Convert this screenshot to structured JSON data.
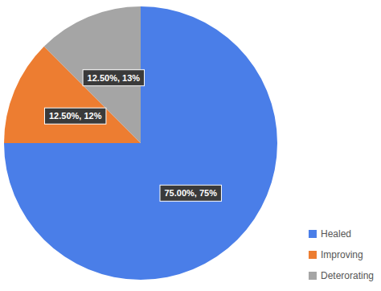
{
  "chart_data": {
    "type": "pie",
    "categories": [
      "Healed",
      "Improving",
      "Deterorating"
    ],
    "values": [
      75,
      12.5,
      12.5
    ],
    "value_labels": [
      "75.00%, 75%",
      "12.50%, 12%",
      "12.50%, 13%"
    ],
    "colors": [
      "#4a7ee8",
      "#ed7d31",
      "#a5a5a5"
    ],
    "data_labels": true,
    "legend": "bottom-right"
  }
}
